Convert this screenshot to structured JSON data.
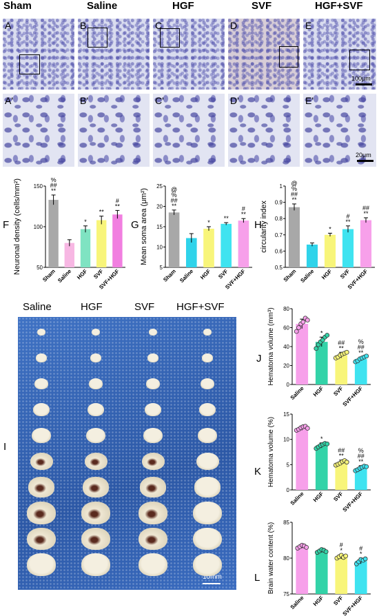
{
  "groups_top": [
    "Sham",
    "Saline",
    "HGF",
    "SVF",
    "HGF+SVF"
  ],
  "row1_labels": [
    "A",
    "B",
    "C",
    "D",
    "E"
  ],
  "row2_labels": [
    "A'",
    "B'",
    "C'",
    "D'",
    "E'"
  ],
  "scale_row1": "100μm",
  "scale_row2": "20μm",
  "groups_photo": [
    "Saline",
    "HGF",
    "SVF",
    "HGF+SVF"
  ],
  "photo_label": "I",
  "photo_scale": "10mm",
  "chart_data": [
    {
      "panel": "F",
      "type": "bar",
      "ylabel": "Neuronal density (cells/mm²)",
      "categories": [
        "Sham",
        "Saline",
        "HGF",
        "SVF",
        "SVF+HGF"
      ],
      "values": [
        133,
        80,
        97,
        108,
        115
      ],
      "errors": [
        6,
        4,
        4,
        5,
        5
      ],
      "ylim": [
        50,
        150
      ],
      "yticks": [
        50,
        100,
        150
      ],
      "colors": [
        "#a8a8a8",
        "#f7b7e3",
        "#7fe3c2",
        "#f8f57a",
        "#f17fe0"
      ],
      "annotations": [
        [
          "@",
          "%",
          "##",
          "**"
        ],
        [],
        [
          "*"
        ],
        [
          "**"
        ],
        [
          "#",
          "**"
        ]
      ]
    },
    {
      "panel": "G",
      "type": "bar",
      "ylabel": "Mean soma area (μm²)",
      "categories": [
        "Sham",
        "Saline",
        "HGF",
        "SVF",
        "SVF+HGF"
      ],
      "values": [
        18.5,
        12.2,
        14.5,
        15.7,
        16.5
      ],
      "errors": [
        0.6,
        1.1,
        0.5,
        0.3,
        0.5
      ],
      "ylim": [
        5,
        25
      ],
      "yticks": [
        5,
        10,
        15,
        20,
        25
      ],
      "colors": [
        "#a8a8a8",
        "#2fd3ea",
        "#f8f57a",
        "#3fe3f0",
        "#f7a0ea"
      ],
      "annotations": [
        [
          "@",
          "%",
          "##",
          "**"
        ],
        [],
        [
          "*"
        ],
        [
          "**"
        ],
        [
          "#",
          "**"
        ]
      ]
    },
    {
      "panel": "H",
      "type": "bar",
      "ylabel": "circularity index",
      "categories": [
        "Sham",
        "Saline",
        "HGF",
        "SVF",
        "SVF+HGF"
      ],
      "values": [
        0.87,
        0.64,
        0.7,
        0.735,
        0.79
      ],
      "errors": [
        0.02,
        0.01,
        0.01,
        0.02,
        0.015
      ],
      "ylim": [
        0.5,
        1.0
      ],
      "yticks": [
        0.5,
        0.6,
        0.7,
        0.8,
        0.9,
        1.0
      ],
      "colors": [
        "#a8a8a8",
        "#2fd3ea",
        "#f8f57a",
        "#3fe3f0",
        "#f7a0ea"
      ],
      "annotations": [
        [
          "@",
          "%",
          "##",
          "**"
        ],
        [],
        [
          "*"
        ],
        [
          "#",
          "**"
        ],
        [
          "##",
          "**"
        ]
      ]
    },
    {
      "panel": "J",
      "type": "bar",
      "ylabel": "Hematoma volume (mm³)",
      "categories": [
        "Saline",
        "HGF",
        "SVF",
        "SVF+HGF"
      ],
      "values": [
        64,
        45,
        31,
        27
      ],
      "errors": [
        5,
        5,
        3,
        2
      ],
      "points": [
        [
          56,
          60,
          64,
          66,
          70,
          68
        ],
        [
          38,
          42,
          45,
          47,
          50,
          52
        ],
        [
          28,
          29,
          31,
          32,
          33,
          34
        ],
        [
          24,
          25,
          27,
          28,
          29,
          30
        ]
      ],
      "ylim": [
        0,
        80
      ],
      "yticks": [
        0,
        20,
        40,
        60,
        80
      ],
      "colors": [
        "#f7a0ea",
        "#33d3a8",
        "#f8f57a",
        "#3fe3f0"
      ],
      "annotations": [
        [],
        [
          "*"
        ],
        [
          "##",
          "**"
        ],
        [
          "%",
          "##",
          "**"
        ]
      ]
    },
    {
      "panel": "K",
      "type": "bar",
      "ylabel": "Hematoma volume (%)",
      "categories": [
        "Saline",
        "HGF",
        "SVF",
        "SVF+HGF"
      ],
      "values": [
        12.2,
        8.8,
        5.4,
        4.3
      ],
      "errors": [
        0.4,
        0.5,
        0.5,
        0.5
      ],
      "points": [
        [
          11.8,
          12.0,
          12.3,
          12.5,
          12.6,
          12.2
        ],
        [
          8.2,
          8.5,
          8.8,
          9.0,
          9.2,
          9.1
        ],
        [
          4.9,
          5.1,
          5.3,
          5.6,
          5.8,
          5.5
        ],
        [
          3.8,
          4.0,
          4.3,
          4.5,
          4.7,
          4.6
        ]
      ],
      "ylim": [
        0,
        15
      ],
      "yticks": [
        0,
        5,
        10,
        15
      ],
      "colors": [
        "#f7a0ea",
        "#33d3a8",
        "#f8f57a",
        "#3fe3f0"
      ],
      "annotations": [
        [],
        [
          "*"
        ],
        [
          "##",
          "**"
        ],
        [
          "%",
          "##",
          "**"
        ]
      ]
    },
    {
      "panel": "L",
      "type": "bar",
      "ylabel": "Brain water content (%)",
      "categories": [
        "Saline",
        "HGF",
        "SVF",
        "SVF+HGF"
      ],
      "values": [
        81.6,
        81.0,
        80.2,
        79.6
      ],
      "errors": [
        0.2,
        0.2,
        0.3,
        0.4
      ],
      "points": [
        [
          81.4,
          81.6,
          81.8,
          81.7,
          81.5
        ],
        [
          80.8,
          81.0,
          81.2,
          81.1,
          80.9
        ],
        [
          80.0,
          80.2,
          80.4,
          80.1,
          80.3
        ],
        [
          79.2,
          79.5,
          79.8,
          79.7,
          79.9
        ]
      ],
      "ylim": [
        75,
        85
      ],
      "yticks": [
        75,
        80,
        85
      ],
      "colors": [
        "#f7a0ea",
        "#33d3a8",
        "#f8f57a",
        "#3fe3f0"
      ],
      "annotations": [
        [],
        [],
        [
          "#",
          "*"
        ],
        [
          "#",
          "*"
        ]
      ]
    }
  ]
}
